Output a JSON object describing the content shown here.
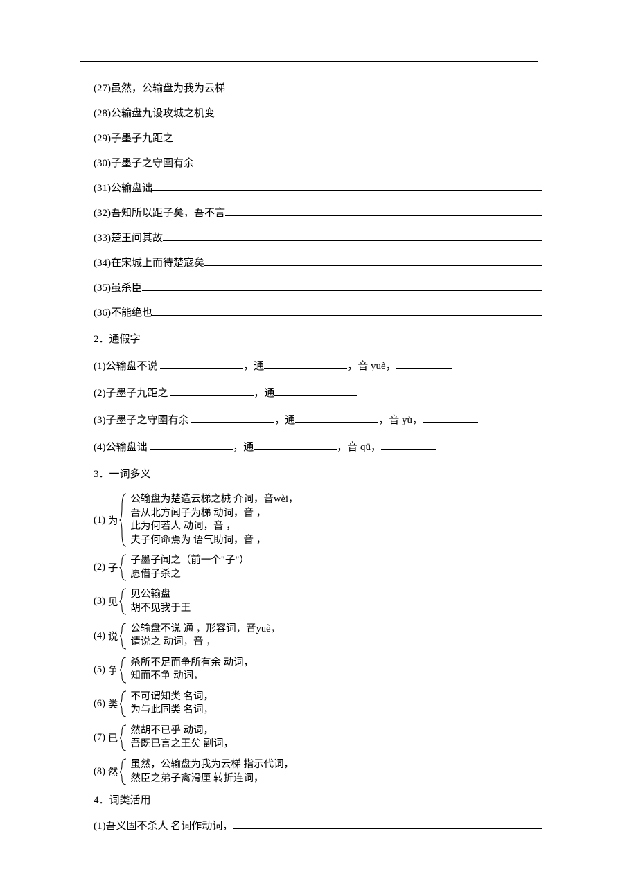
{
  "rule_color": "#000000",
  "items": [
    {
      "n": "(27)",
      "t": "虽然，公输盘为我为云梯"
    },
    {
      "n": "(28)",
      "t": "公输盘九设攻城之机变"
    },
    {
      "n": "(29)",
      "t": "子墨子九距之"
    },
    {
      "n": "(30)",
      "t": "子墨子之守圉有余"
    },
    {
      "n": "(31)",
      "t": "公输盘诎"
    },
    {
      "n": "(32)",
      "t": "吾知所以距子矣，吾不言"
    },
    {
      "n": "(33)",
      "t": "楚王问其故"
    },
    {
      "n": "(34)",
      "t": "在宋城上而待楚寇矣"
    },
    {
      "n": "(35)",
      "t": "虽杀臣"
    },
    {
      "n": "(36)",
      "t": "不能绝也"
    }
  ],
  "sect2": "2．通假字",
  "tongjia": [
    {
      "pre": "(1)公输盘不说 ",
      "mid1": "，通",
      "mid2": "，音 yuè，",
      "tail": true
    },
    {
      "pre": " (2)子墨子九距之 ",
      "mid1": "，通",
      "mid2": "",
      "tail": false
    },
    {
      "pre": "(3)子墨子之守圉有余 ",
      "mid1": "，通",
      "mid2": "，音 yù，",
      "tail": true
    },
    {
      "pre": "(4)公输盘诎 ",
      "mid1": "，通",
      "mid2": "，音 qū，",
      "tail": true
    }
  ],
  "sect3": "3．一词多义",
  "poly": [
    {
      "n": "(1)",
      "c": "为",
      "lines": [
        "公输盘为楚造云梯之械  介词，音wèi，",
        "吾从北方闻子为梯  动词，音            ，",
        "此为何若人  动词，音            ，",
        "夫子何命焉为  语气助词，音            ，"
      ]
    },
    {
      "n": "(2)",
      "c": "子",
      "lines": [
        "子墨子闻之（前一个\"子\"）",
        "愿借子杀之"
      ]
    },
    {
      "n": "(3)",
      "c": "见",
      "lines": [
        "见公输盘",
        "胡不见我于王"
      ]
    },
    {
      "n": "(4)",
      "c": "说",
      "lines": [
        "公输盘不说  通            ，形容词，音yuè，",
        "请说之  动词，音            ，"
      ]
    },
    {
      "n": "(5)",
      "c": "争",
      "lines": [
        "杀所不足而争所有余  动词，",
        "知而不争  动词，"
      ]
    },
    {
      "n": "(6)",
      "c": "类",
      "lines": [
        "不可谓知类  名词，",
        "为与此同类  名词，"
      ]
    },
    {
      "n": "(7)",
      "c": "已",
      "lines": [
        "然胡不已乎  动词，",
        "吾既已言之王矣  副词，"
      ]
    },
    {
      "n": "(8)",
      "c": "然",
      "lines": [
        "虽然，公输盘为我为云梯  指示代词，",
        "然臣之弟子禽滑厘  转折连词，"
      ]
    }
  ],
  "sect4": "4．词类活用",
  "cihuo": {
    "pre": "(1)吾义固不杀人  名词作动词，"
  }
}
